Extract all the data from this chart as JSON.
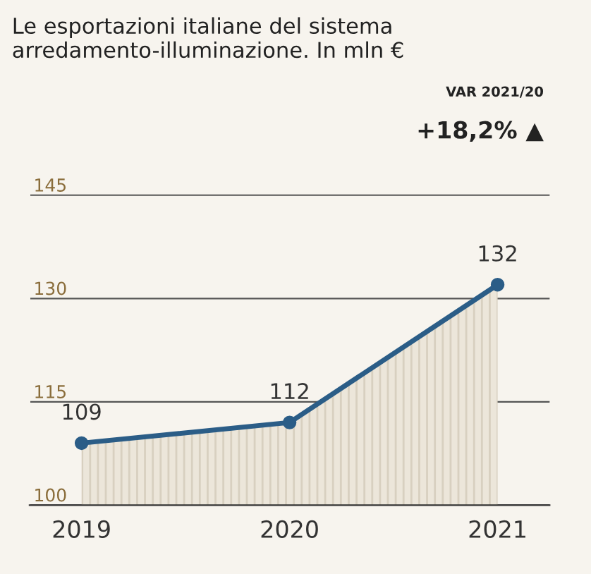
{
  "chart_data": {
    "type": "area",
    "title": "Le esportazioni italiane del sistema arredamento-illuminazione. In mln €",
    "categories": [
      "2019",
      "2020",
      "2021"
    ],
    "series": [
      {
        "color": "#2b5d87",
        "values": [
          109,
          112,
          132
        ]
      }
    ],
    "ylim": [
      100,
      150
    ],
    "yticks": [
      100,
      115,
      130,
      145
    ],
    "grid": "y",
    "marker": "circle",
    "data_labels": true,
    "annotations": [
      "VAR 2021/20",
      "+18,2% ▲"
    ]
  }
}
